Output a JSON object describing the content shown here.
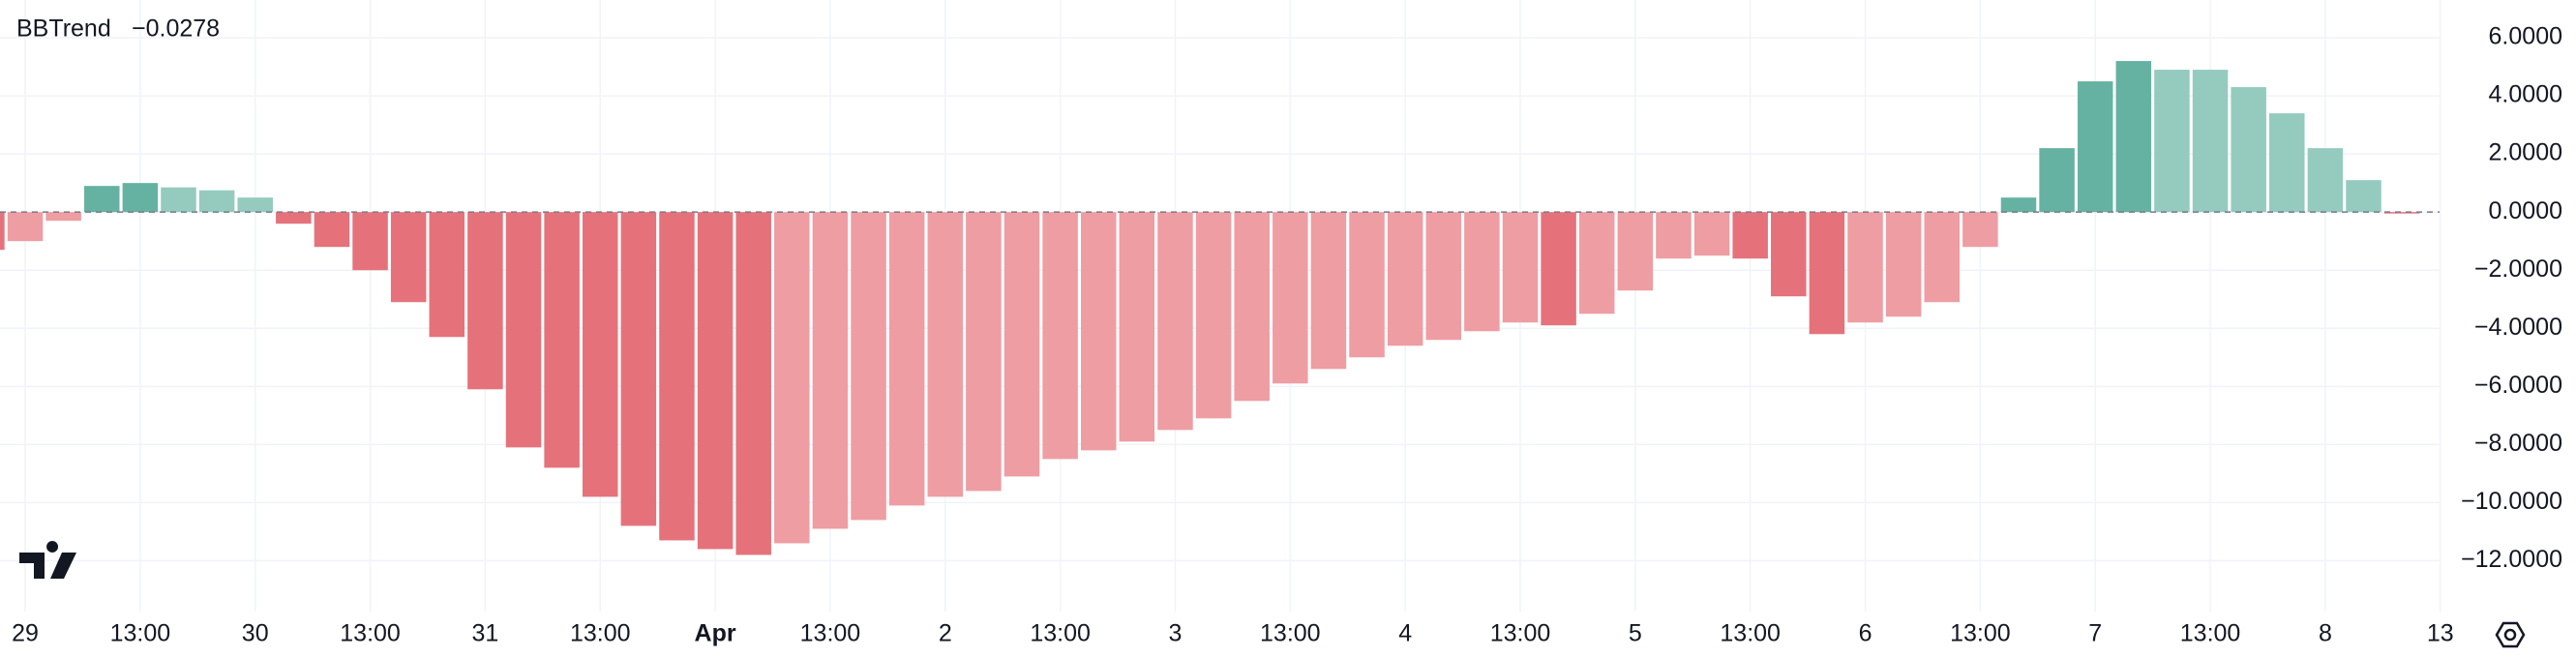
{
  "chart_data": {
    "type": "bar",
    "indicator_name": "BBTrend",
    "last_value_label": "−0.0278",
    "last_value_color": "#f23645",
    "categories": [
      null,
      "29",
      null,
      null,
      "13:00",
      null,
      null,
      "30",
      null,
      null,
      "13:00",
      null,
      null,
      "31",
      null,
      null,
      "13:00",
      null,
      null,
      "Apr",
      null,
      null,
      "13:00",
      null,
      null,
      "2",
      null,
      null,
      "13:00",
      null,
      null,
      "3",
      null,
      null,
      "13:00",
      null,
      null,
      "4",
      null,
      null,
      "13:00",
      null,
      null,
      "5",
      null,
      null,
      "13:00",
      null,
      null,
      "6",
      null,
      null,
      "13:00",
      null,
      null,
      "7",
      null,
      null,
      "13:00",
      null,
      null,
      "8",
      null,
      null,
      "13"
    ],
    "bold_categories": [
      "Apr"
    ],
    "values": [
      -1.3,
      -1.0,
      -0.3,
      0.9,
      1.0,
      0.85,
      0.75,
      0.5,
      -0.4,
      -1.2,
      -2.0,
      -3.1,
      -4.3,
      -6.1,
      -8.1,
      -8.8,
      -9.8,
      -10.8,
      -11.3,
      -11.6,
      -11.8,
      -11.4,
      -10.9,
      -10.6,
      -10.1,
      -9.8,
      -9.6,
      -9.1,
      -8.5,
      -8.2,
      -7.9,
      -7.5,
      -7.1,
      -6.5,
      -5.9,
      -5.4,
      -5.0,
      -4.6,
      -4.4,
      -4.1,
      -3.8,
      -3.9,
      -3.5,
      -2.7,
      -1.6,
      -1.5,
      -1.6,
      -2.9,
      -4.2,
      -3.8,
      -3.6,
      -3.1,
      -1.2,
      0.5,
      2.2,
      4.5,
      5.2,
      4.9,
      4.9,
      4.3,
      3.4,
      2.2,
      1.1,
      -0.0278,
      null
    ],
    "colors": [
      "#e5727b",
      "#ee9da3",
      "#ee9da3",
      "#66b2a2",
      "#66b2a2",
      "#95cbbf",
      "#95cbbf",
      "#95cbbf",
      "#e5727b",
      "#e5727b",
      "#e5727b",
      "#e5727b",
      "#e5727b",
      "#e5727b",
      "#e5727b",
      "#e5727b",
      "#e5727b",
      "#e5727b",
      "#e5727b",
      "#e5727b",
      "#e5727b",
      "#ee9da3",
      "#ee9da3",
      "#ee9da3",
      "#ee9da3",
      "#ee9da3",
      "#ee9da3",
      "#ee9da3",
      "#ee9da3",
      "#ee9da3",
      "#ee9da3",
      "#ee9da3",
      "#ee9da3",
      "#ee9da3",
      "#ee9da3",
      "#ee9da3",
      "#ee9da3",
      "#ee9da3",
      "#ee9da3",
      "#ee9da3",
      "#ee9da3",
      "#e5727b",
      "#ee9da3",
      "#ee9da3",
      "#ee9da3",
      "#ee9da3",
      "#e5727b",
      "#e5727b",
      "#e5727b",
      "#ee9da3",
      "#ee9da3",
      "#ee9da3",
      "#ee9da3",
      "#66b2a2",
      "#66b2a2",
      "#66b2a2",
      "#66b2a2",
      "#95cbbf",
      "#95cbbf",
      "#95cbbf",
      "#95cbbf",
      "#95cbbf",
      "#95cbbf",
      "#e5727b",
      null
    ],
    "ylim": [
      -13.75,
      7.3
    ],
    "yticks": [
      {
        "value": 6,
        "label": "6.0000"
      },
      {
        "value": 4,
        "label": "4.0000"
      },
      {
        "value": 2,
        "label": "2.0000"
      },
      {
        "value": 0,
        "label": "0.0000"
      },
      {
        "value": -2,
        "label": "−2.0000"
      },
      {
        "value": -4,
        "label": "−4.0000"
      },
      {
        "value": -6,
        "label": "−6.0000"
      },
      {
        "value": -8,
        "label": "−8.0000"
      },
      {
        "value": -10,
        "label": "−10.0000"
      },
      {
        "value": -12,
        "label": "−12.0000"
      }
    ],
    "grid": true
  }
}
